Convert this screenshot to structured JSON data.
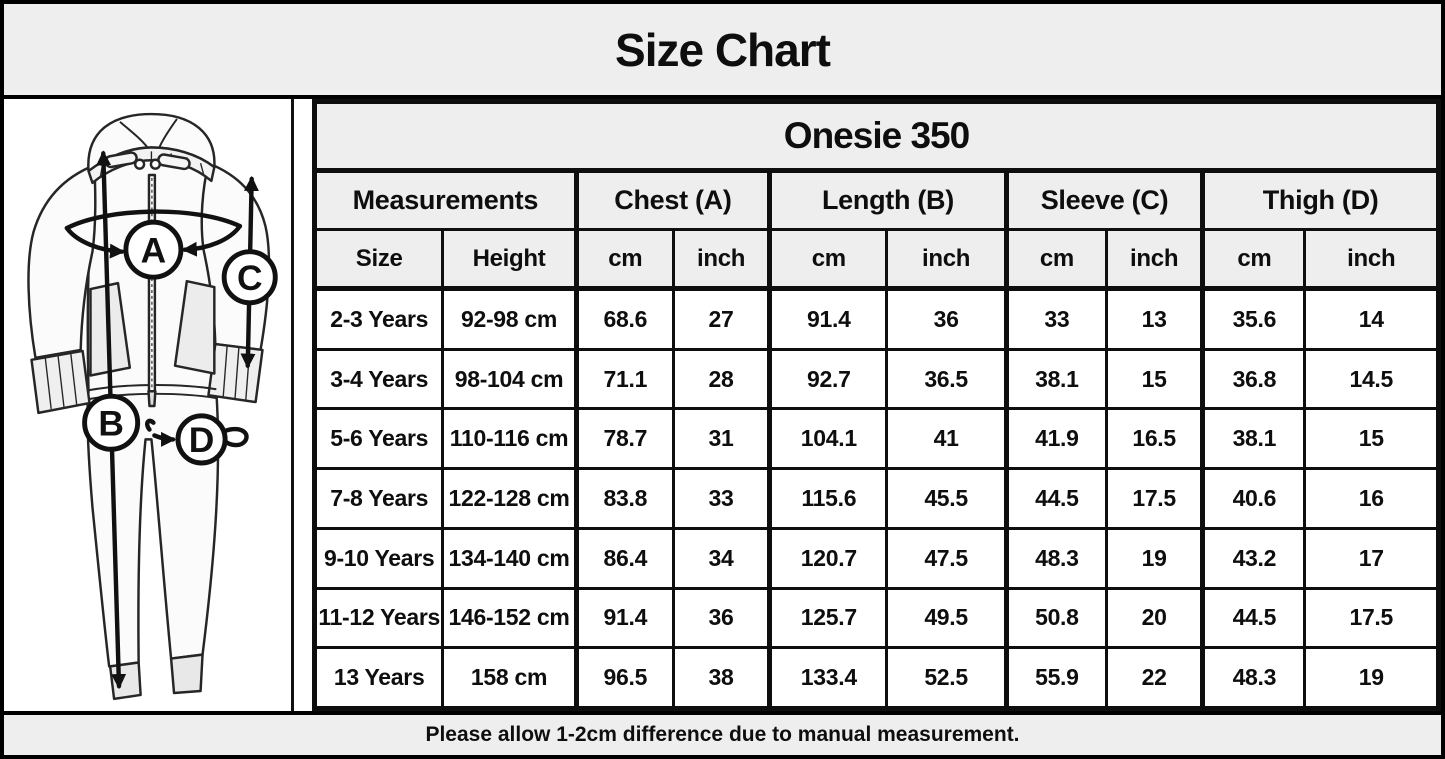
{
  "title": "Size Chart",
  "footer_note": "Please allow 1-2cm difference due to manual measurement.",
  "diagram": {
    "labels": {
      "chest": "A",
      "length": "B",
      "sleeve": "C",
      "thigh": "D"
    }
  },
  "chart_data": {
    "type": "table",
    "title": "Size Chart",
    "product": "Onesie 350",
    "group_headers": [
      {
        "label": "Measurements",
        "span": 2
      },
      {
        "label": "Chest (A)",
        "span": 2
      },
      {
        "label": "Length (B)",
        "span": 2
      },
      {
        "label": "Sleeve (C)",
        "span": 2
      },
      {
        "label": "Thigh (D)",
        "span": 2
      }
    ],
    "sub_headers": [
      "Size",
      "Height",
      "cm",
      "inch",
      "cm",
      "inch",
      "cm",
      "inch",
      "cm",
      "inch"
    ],
    "rows": [
      [
        "2-3 Years",
        "92-98 cm",
        "68.6",
        "27",
        "91.4",
        "36",
        "33",
        "13",
        "35.6",
        "14"
      ],
      [
        "3-4 Years",
        "98-104 cm",
        "71.1",
        "28",
        "92.7",
        "36.5",
        "38.1",
        "15",
        "36.8",
        "14.5"
      ],
      [
        "5-6 Years",
        "110-116 cm",
        "78.7",
        "31",
        "104.1",
        "41",
        "41.9",
        "16.5",
        "38.1",
        "15"
      ],
      [
        "7-8 Years",
        "122-128 cm",
        "83.8",
        "33",
        "115.6",
        "45.5",
        "44.5",
        "17.5",
        "40.6",
        "16"
      ],
      [
        "9-10 Years",
        "134-140 cm",
        "86.4",
        "34",
        "120.7",
        "47.5",
        "48.3",
        "19",
        "43.2",
        "17"
      ],
      [
        "11-12 Years",
        "146-152 cm",
        "91.4",
        "36",
        "125.7",
        "49.5",
        "50.8",
        "20",
        "44.5",
        "17.5"
      ],
      [
        "13 Years",
        "158 cm",
        "96.5",
        "38",
        "133.4",
        "52.5",
        "55.9",
        "22",
        "48.3",
        "19"
      ]
    ]
  },
  "colors": {
    "header_bg": "#eeeeee",
    "cell_bg": "#ffffff",
    "border": "#0e0e0e",
    "text": "#0e0e0e"
  }
}
